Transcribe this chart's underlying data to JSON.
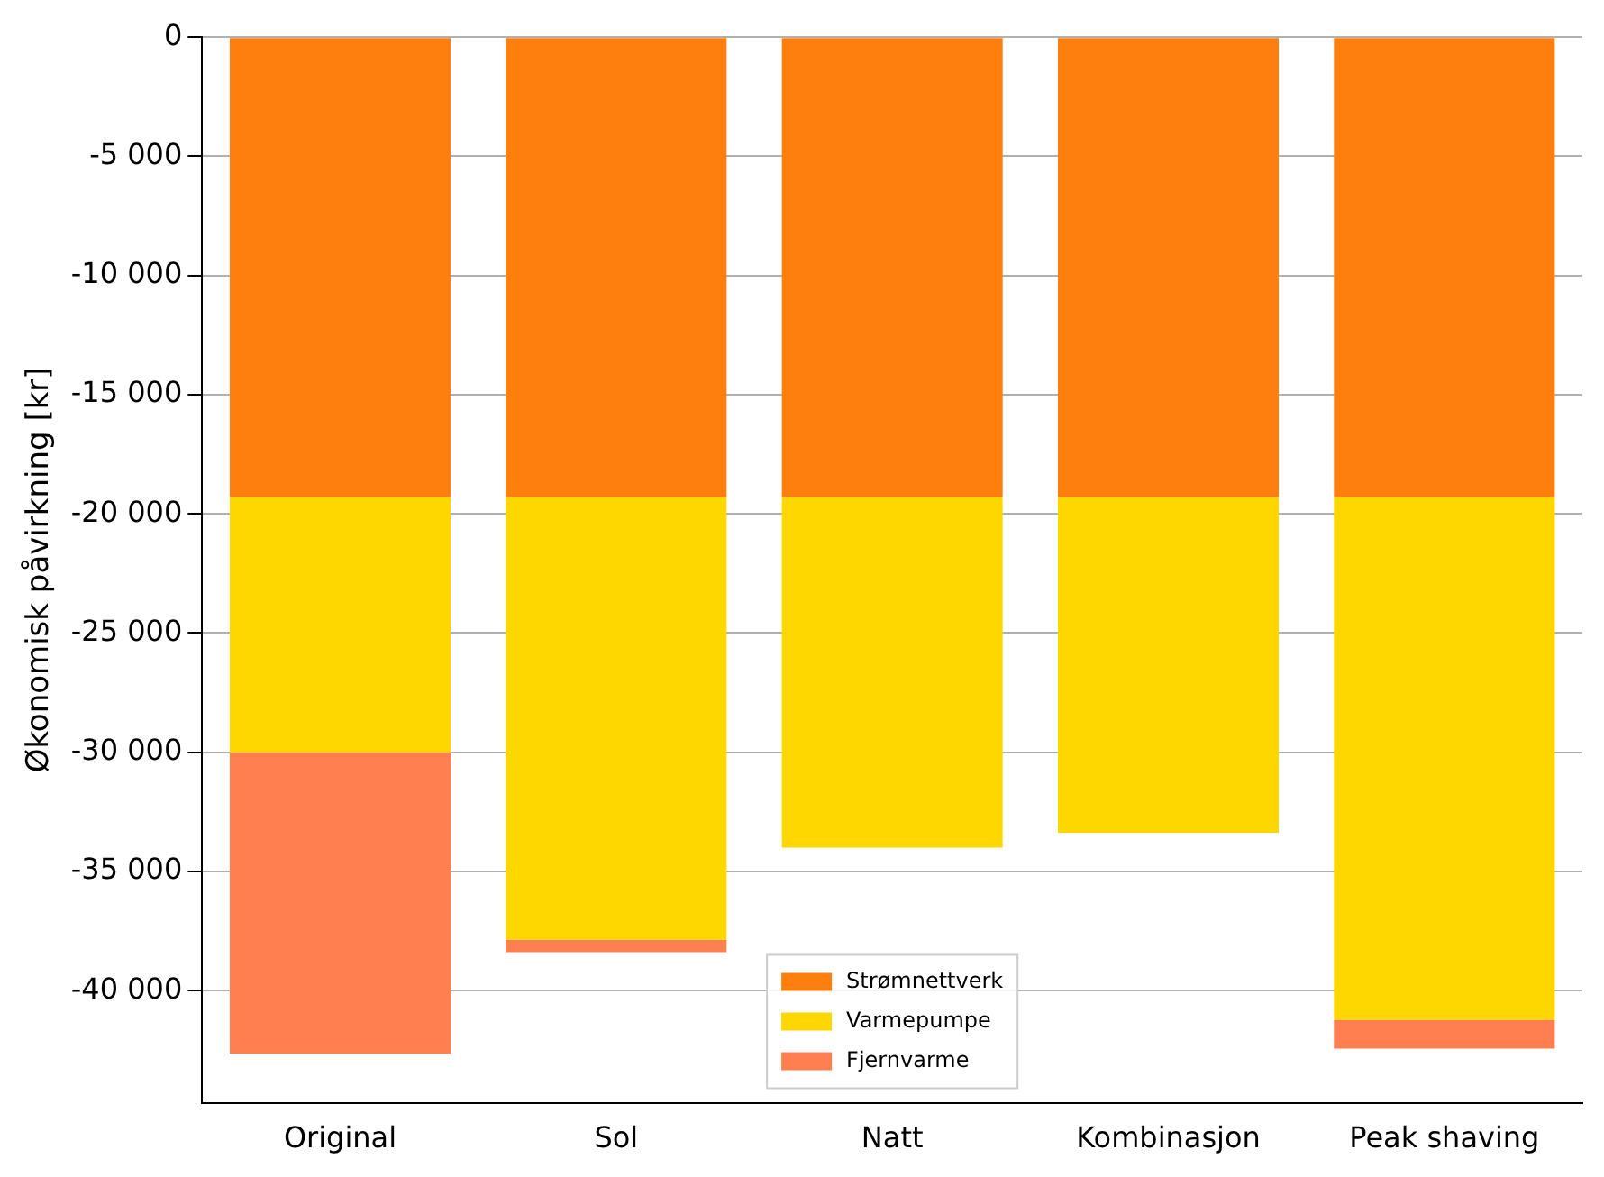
{
  "chart_data": {
    "type": "bar",
    "ylabel": "Økonomisk påvirkning [kr]",
    "categories": [
      "Original",
      "Sol",
      "Natt",
      "Kombinasjon",
      "Peak shaving"
    ],
    "stacked": true,
    "series": [
      {
        "name": "Strømnettverk",
        "color": "#ff7f0e",
        "values": [
          -19300,
          -19300,
          -19300,
          -19300,
          -19300
        ]
      },
      {
        "name": "Varmepumpe",
        "color": "#ffd700",
        "values": [
          -10700,
          -18560,
          -14700,
          -14070,
          -21920
        ]
      },
      {
        "name": "Fjernvarme",
        "color": "#ff7f50",
        "values": [
          -12650,
          -520,
          0,
          0,
          -1210
        ]
      }
    ],
    "ylim": [
      -44700,
      0
    ],
    "yticks": [
      0,
      -5000,
      -10000,
      -15000,
      -20000,
      -25000,
      -30000,
      -35000,
      -40000
    ],
    "grid": "y",
    "legend": "bottom"
  }
}
